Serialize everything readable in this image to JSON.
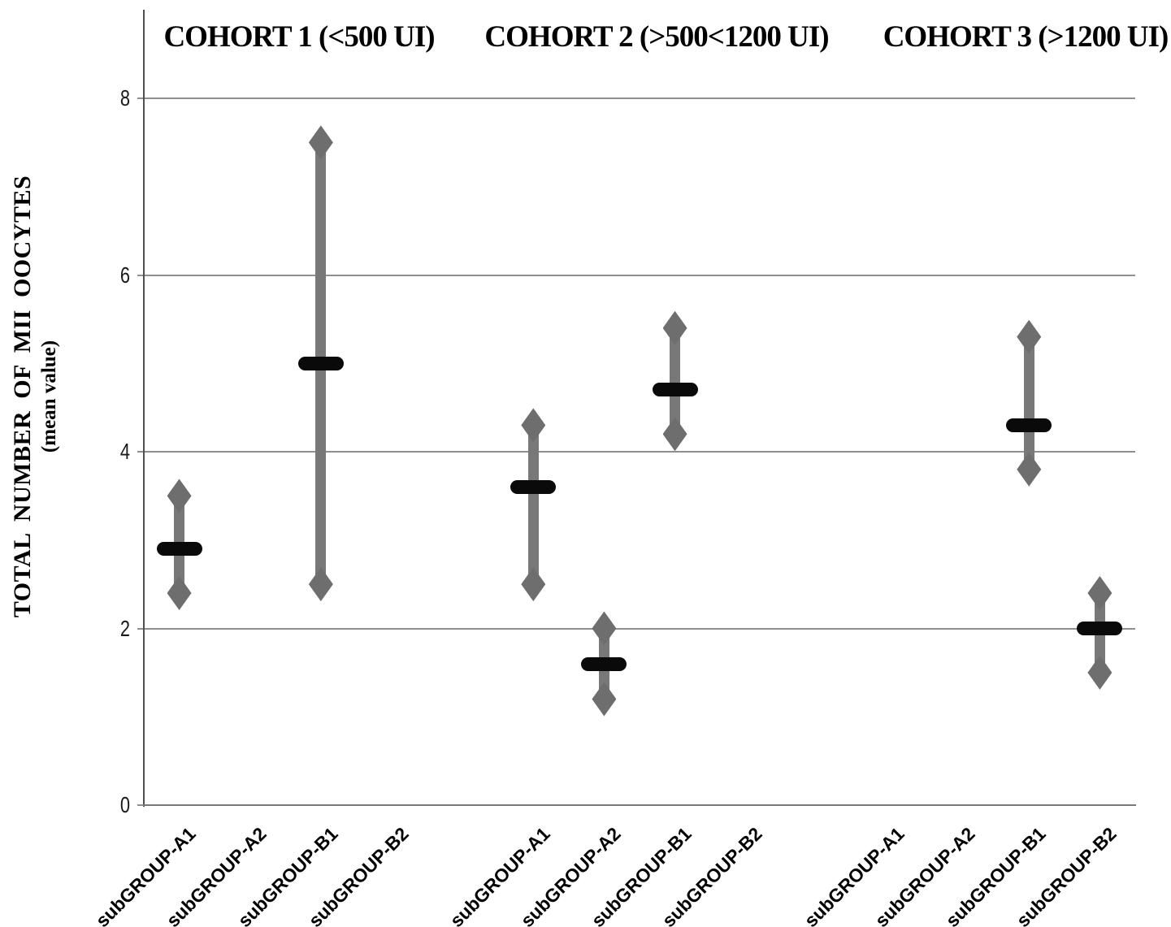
{
  "chart_data": {
    "type": "bar",
    "subtype": "high-low range bars with diamond endpoints and black mean markers",
    "title": "",
    "xlabel": "",
    "ylabel_line1": "TOTAL NUMBER OF MII OOCYTES",
    "ylabel_line2": "(mean value)",
    "ylim": [
      0,
      9
    ],
    "yticks": [
      0,
      2,
      4,
      6,
      8
    ],
    "grid": "horizontal gridlines at y ticks",
    "legend_position": "none",
    "n_slots": 14,
    "cohort_titles": [
      {
        "label": "COHORT 1 (<500 UI)"
      },
      {
        "label": "COHORT 2 (>500<1200 UI)"
      },
      {
        "label": "COHORT 3 (>1200 UI)"
      }
    ],
    "x_categories": [
      {
        "slot": 0,
        "label": "subGROUP-A1"
      },
      {
        "slot": 1,
        "label": "subGROUP-A2"
      },
      {
        "slot": 2,
        "label": "subGROUP-B1"
      },
      {
        "slot": 3,
        "label": "subGROUP-B2"
      },
      {
        "slot": 5,
        "label": "subGROUP-A1"
      },
      {
        "slot": 6,
        "label": "subGROUP-A2"
      },
      {
        "slot": 7,
        "label": "subGROUP-B1"
      },
      {
        "slot": 8,
        "label": "subGROUP-B2"
      },
      {
        "slot": 10,
        "label": "subGROUP-A1"
      },
      {
        "slot": 11,
        "label": "subGROUP-A2"
      },
      {
        "slot": 12,
        "label": "subGROUP-B1"
      },
      {
        "slot": 13,
        "label": "subGROUP-B2"
      }
    ],
    "series": [
      {
        "cohort": "COHORT 1 (<500 UI)",
        "subgroup": "subGROUP-A1",
        "slot": 0,
        "min": 2.4,
        "mean": 2.9,
        "max": 3.5
      },
      {
        "cohort": "COHORT 1 (<500 UI)",
        "subgroup": "subGROUP-B1",
        "slot": 2,
        "min": 2.5,
        "mean": 5.0,
        "max": 7.5
      },
      {
        "cohort": "COHORT 2 (>500<1200 UI)",
        "subgroup": "subGROUP-A1",
        "slot": 5,
        "min": 2.5,
        "mean": 3.6,
        "max": 4.3
      },
      {
        "cohort": "COHORT 2 (>500<1200 UI)",
        "subgroup": "subGROUP-A2",
        "slot": 6,
        "min": 1.2,
        "mean": 1.6,
        "max": 2.0
      },
      {
        "cohort": "COHORT 2 (>500<1200 UI)",
        "subgroup": "subGROUP-B1",
        "slot": 7,
        "min": 4.2,
        "mean": 4.7,
        "max": 5.4
      },
      {
        "cohort": "COHORT 3 (>1200 UI)",
        "subgroup": "subGROUP-B1",
        "slot": 12,
        "min": 3.8,
        "mean": 4.3,
        "max": 5.3
      },
      {
        "cohort": "COHORT 3 (>1200 UI)",
        "subgroup": "subGROUP-B2",
        "slot": 13,
        "min": 1.5,
        "mean": 2.0,
        "max": 2.4
      }
    ]
  },
  "colors": {
    "background": "#ffffff",
    "range_bar_gray": "#6e6e6e",
    "stem_gray": "#787878",
    "mean_marker_black": "#0a0a0a",
    "gridline_gray": "#8f8f8f",
    "axis_gray": "#4f4f4f",
    "text_black": "#000000"
  }
}
